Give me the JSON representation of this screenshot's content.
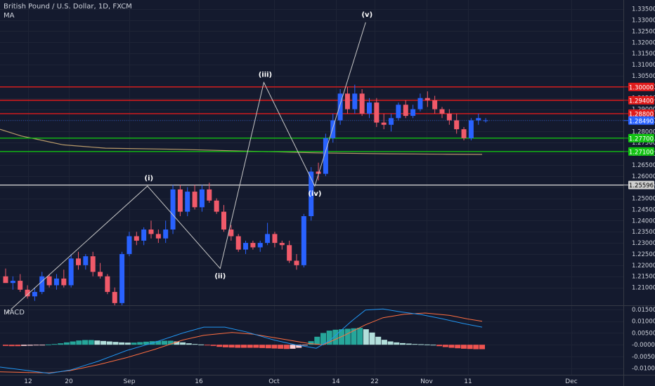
{
  "header": {
    "title": "British Pound / U.S. Dollar, 1D, FXCM",
    "indicator": "MA"
  },
  "colors": {
    "background": "#141a2e",
    "grid": "#1e2436",
    "up": "#2962ff",
    "down": "#f05a6a",
    "red_line": "#e01b1b",
    "green_line": "#12c212",
    "white_line": "#c8c8c8",
    "ma": "#b89a6a",
    "macd": "#2196f3",
    "signal": "#ff6e40",
    "hist_pos_strong": "#26a69a",
    "hist_pos_weak": "#b2dfdb",
    "hist_neg_strong": "#ef5350",
    "hist_neg_weak": "#ffcdd2"
  },
  "chart_data": [
    {
      "type": "candlestick",
      "title": "British Pound / U.S. Dollar, 1D, FXCM",
      "ylim": [
        1.202,
        1.339
      ],
      "yticks": [
        "1.33500",
        "1.33000",
        "1.32500",
        "1.32000",
        "1.31500",
        "1.31000",
        "1.30500",
        "1.30000",
        "1.29500",
        "1.29000",
        "1.28500",
        "1.28000",
        "1.27500",
        "1.27000",
        "1.26500",
        "1.26000",
        "1.25500",
        "1.25000",
        "1.24500",
        "1.24000",
        "1.23500",
        "1.23000",
        "1.22500",
        "1.22000",
        "1.21500",
        "1.21000"
      ],
      "xticks": [
        "12",
        "20",
        "Sep",
        "16",
        "Oct",
        "14",
        "22",
        "Nov",
        "11",
        "Dec"
      ],
      "candles": [
        [
          1.215,
          1.2185,
          1.213,
          1.212
        ],
        [
          1.212,
          1.215,
          1.209,
          1.213
        ],
        [
          1.213,
          1.216,
          1.208,
          1.209
        ],
        [
          1.209,
          1.211,
          1.205,
          1.206
        ],
        [
          1.206,
          1.21,
          1.204,
          1.208
        ],
        [
          1.208,
          1.217,
          1.207,
          1.215
        ],
        [
          1.215,
          1.216,
          1.21,
          1.211
        ],
        [
          1.211,
          1.216,
          1.209,
          1.214
        ],
        [
          1.214,
          1.218,
          1.21,
          1.211
        ],
        [
          1.211,
          1.225,
          1.21,
          1.223
        ],
        [
          1.223,
          1.226,
          1.218,
          1.22
        ],
        [
          1.22,
          1.225,
          1.218,
          1.224
        ],
        [
          1.224,
          1.226,
          1.215,
          1.217
        ],
        [
          1.217,
          1.221,
          1.214,
          1.215
        ],
        [
          1.215,
          1.216,
          1.207,
          1.208
        ],
        [
          1.208,
          1.21,
          1.202,
          1.203
        ],
        [
          1.203,
          1.226,
          1.202,
          1.225
        ],
        [
          1.225,
          1.235,
          1.224,
          1.233
        ],
        [
          1.233,
          1.235,
          1.229,
          1.231
        ],
        [
          1.231,
          1.237,
          1.229,
          1.236
        ],
        [
          1.236,
          1.24,
          1.232,
          1.234
        ],
        [
          1.234,
          1.236,
          1.23,
          1.232
        ],
        [
          1.232,
          1.24,
          1.23,
          1.236
        ],
        [
          1.236,
          1.256,
          1.234,
          1.254
        ],
        [
          1.254,
          1.256,
          1.242,
          1.244
        ],
        [
          1.244,
          1.255,
          1.242,
          1.253
        ],
        [
          1.253,
          1.256,
          1.245,
          1.246
        ],
        [
          1.246,
          1.256,
          1.244,
          1.254
        ],
        [
          1.254,
          1.257,
          1.248,
          1.249
        ],
        [
          1.249,
          1.25,
          1.243,
          1.244
        ],
        [
          1.244,
          1.247,
          1.235,
          1.236
        ],
        [
          1.236,
          1.238,
          1.231,
          1.233
        ],
        [
          1.233,
          1.234,
          1.226,
          1.227
        ],
        [
          1.227,
          1.231,
          1.225,
          1.23
        ],
        [
          1.23,
          1.231,
          1.227,
          1.228
        ],
        [
          1.228,
          1.231,
          1.226,
          1.23
        ],
        [
          1.23,
          1.239,
          1.229,
          1.234
        ],
        [
          1.234,
          1.235,
          1.228,
          1.23
        ],
        [
          1.23,
          1.231,
          1.227,
          1.229
        ],
        [
          1.229,
          1.231,
          1.221,
          1.222
        ],
        [
          1.222,
          1.225,
          1.218,
          1.22
        ],
        [
          1.22,
          1.243,
          1.219,
          1.242
        ],
        [
          1.242,
          1.264,
          1.24,
          1.262
        ],
        [
          1.262,
          1.266,
          1.258,
          1.261
        ],
        [
          1.261,
          1.279,
          1.26,
          1.277
        ],
        [
          1.277,
          1.288,
          1.275,
          1.285
        ],
        [
          1.285,
          1.299,
          1.283,
          1.297
        ],
        [
          1.297,
          1.3,
          1.288,
          1.29
        ],
        [
          1.29,
          1.301,
          1.288,
          1.297
        ],
        [
          1.297,
          1.299,
          1.287,
          1.288
        ],
        [
          1.288,
          1.295,
          1.286,
          1.293
        ],
        [
          1.293,
          1.295,
          1.282,
          1.284
        ],
        [
          1.284,
          1.288,
          1.281,
          1.283
        ],
        [
          1.283,
          1.288,
          1.28,
          1.286
        ],
        [
          1.286,
          1.293,
          1.285,
          1.292
        ],
        [
          1.292,
          1.294,
          1.286,
          1.287
        ],
        [
          1.287,
          1.292,
          1.286,
          1.29
        ],
        [
          1.29,
          1.297,
          1.289,
          1.295
        ],
        [
          1.295,
          1.298,
          1.291,
          1.294
        ],
        [
          1.294,
          1.296,
          1.288,
          1.29
        ],
        [
          1.29,
          1.291,
          1.286,
          1.288
        ],
        [
          1.288,
          1.29,
          1.283,
          1.285
        ],
        [
          1.285,
          1.288,
          1.279,
          1.281
        ],
        [
          1.281,
          1.282,
          1.276,
          1.277
        ],
        [
          1.277,
          1.286,
          1.276,
          1.285
        ],
        [
          1.285,
          1.288,
          1.283,
          1.286
        ],
        [
          1.2848,
          1.286,
          1.284,
          1.285
        ]
      ],
      "ma": [
        [
          0,
          1.281
        ],
        [
          30,
          1.278
        ],
        [
          60,
          1.276
        ],
        [
          90,
          1.274
        ],
        [
          150,
          1.2725
        ],
        [
          250,
          1.272
        ],
        [
          350,
          1.2712
        ],
        [
          450,
          1.2704
        ],
        [
          550,
          1.27
        ],
        [
          630,
          1.2698
        ],
        [
          686,
          1.2697
        ]
      ],
      "levels": [
        {
          "label": "1.30000",
          "value": 1.3,
          "color": "#e01b1b"
        },
        {
          "label": "1.29400",
          "value": 1.294,
          "color": "#e01b1b"
        },
        {
          "label": "1.28800",
          "value": 1.288,
          "color": "#e01b1b"
        },
        {
          "label": "1.28490",
          "value": 1.2849,
          "color": "#2962ff"
        },
        {
          "label": "1.27700",
          "value": 1.277,
          "color": "#12c212"
        },
        {
          "label": "1.27100",
          "value": 1.271,
          "color": "#12c212"
        },
        {
          "label": "1.25596",
          "value": 1.25596,
          "color": "#d0d0d0"
        }
      ],
      "waves": {
        "labels": [
          "(i)",
          "(ii)",
          "(iii)",
          "(iv)",
          "(v)"
        ],
        "path": [
          [
            0,
            1.198
          ],
          [
            19.5,
            1.2555
          ],
          [
            29.5,
            1.2185
          ],
          [
            35.5,
            1.302
          ],
          [
            42.5,
            1.2555
          ],
          [
            49.5,
            1.329
          ]
        ]
      }
    },
    {
      "type": "macd",
      "title": "MACD",
      "ylim": [
        -0.0128,
        0.0165
      ],
      "yticks": [
        "0.01500",
        "0.01000",
        "0.00500",
        "-0.00000",
        "-0.00500",
        "-0.01000"
      ],
      "histogram": [
        -0.0005,
        -0.0006,
        -0.0006,
        -0.0005,
        -0.0004,
        -0.0003,
        -0.0001,
        0.0001,
        0.0003,
        0.0006,
        0.001,
        0.0014,
        0.0018,
        0.002,
        0.002,
        0.0018,
        0.0016,
        0.0014,
        0.0012,
        0.001,
        0.0009,
        0.0009,
        0.0011,
        0.0013,
        0.0015,
        0.0016,
        0.0017,
        0.0017,
        0.0014,
        0.001,
        0.0006,
        0.0003,
        0.0001,
        -0.0001,
        -0.0005,
        -0.0009,
        -0.0011,
        -0.0012,
        -0.0013,
        -0.0013,
        -0.0013,
        -0.0013,
        -0.0014,
        -0.0015,
        -0.0016,
        -0.0017,
        -0.0018,
        -0.0017,
        -0.0013,
        -0.0003,
        0.0015,
        0.0034,
        0.005,
        0.006,
        0.0064,
        0.0066,
        0.0068,
        0.007,
        0.0072,
        0.0066,
        0.0052,
        0.0034,
        0.0021,
        0.0014,
        0.001,
        0.0007,
        0.0005,
        0.0003,
        0.0002,
        0.0001,
        0.0,
        -0.0006,
        -0.001,
        -0.0013,
        -0.0015,
        -0.0017,
        -0.0018,
        -0.0019,
        -0.0019
      ],
      "macd": [
        [
          0,
          -0.0095
        ],
        [
          40,
          -0.011
        ],
        [
          70,
          -0.0122
        ],
        [
          100,
          -0.0108
        ],
        [
          140,
          -0.007
        ],
        [
          180,
          -0.0025
        ],
        [
          220,
          0.001
        ],
        [
          260,
          0.005
        ],
        [
          290,
          0.0075
        ],
        [
          320,
          0.0075
        ],
        [
          350,
          0.0055
        ],
        [
          390,
          0.002
        ],
        [
          420,
          0.0
        ],
        [
          440,
          -0.001
        ],
        [
          450,
          -0.0015
        ],
        [
          470,
          0.002
        ],
        [
          500,
          0.01
        ],
        [
          520,
          0.0148
        ],
        [
          545,
          0.0152
        ],
        [
          570,
          0.014
        ],
        [
          600,
          0.0128
        ],
        [
          630,
          0.011
        ],
        [
          660,
          0.009
        ],
        [
          686,
          0.0075
        ]
      ],
      "signal": [
        [
          0,
          -0.0115
        ],
        [
          40,
          -0.0118
        ],
        [
          70,
          -0.012
        ],
        [
          100,
          -0.011
        ],
        [
          140,
          -0.0085
        ],
        [
          180,
          -0.0055
        ],
        [
          220,
          -0.002
        ],
        [
          260,
          0.002
        ],
        [
          290,
          0.004
        ],
        [
          330,
          0.0052
        ],
        [
          360,
          0.0045
        ],
        [
          400,
          0.0025
        ],
        [
          440,
          0.0005
        ],
        [
          460,
          0.0
        ],
        [
          490,
          0.004
        ],
        [
          520,
          0.0085
        ],
        [
          545,
          0.0115
        ],
        [
          575,
          0.013
        ],
        [
          605,
          0.0135
        ],
        [
          640,
          0.0125
        ],
        [
          665,
          0.011
        ],
        [
          686,
          0.01
        ]
      ]
    }
  ]
}
